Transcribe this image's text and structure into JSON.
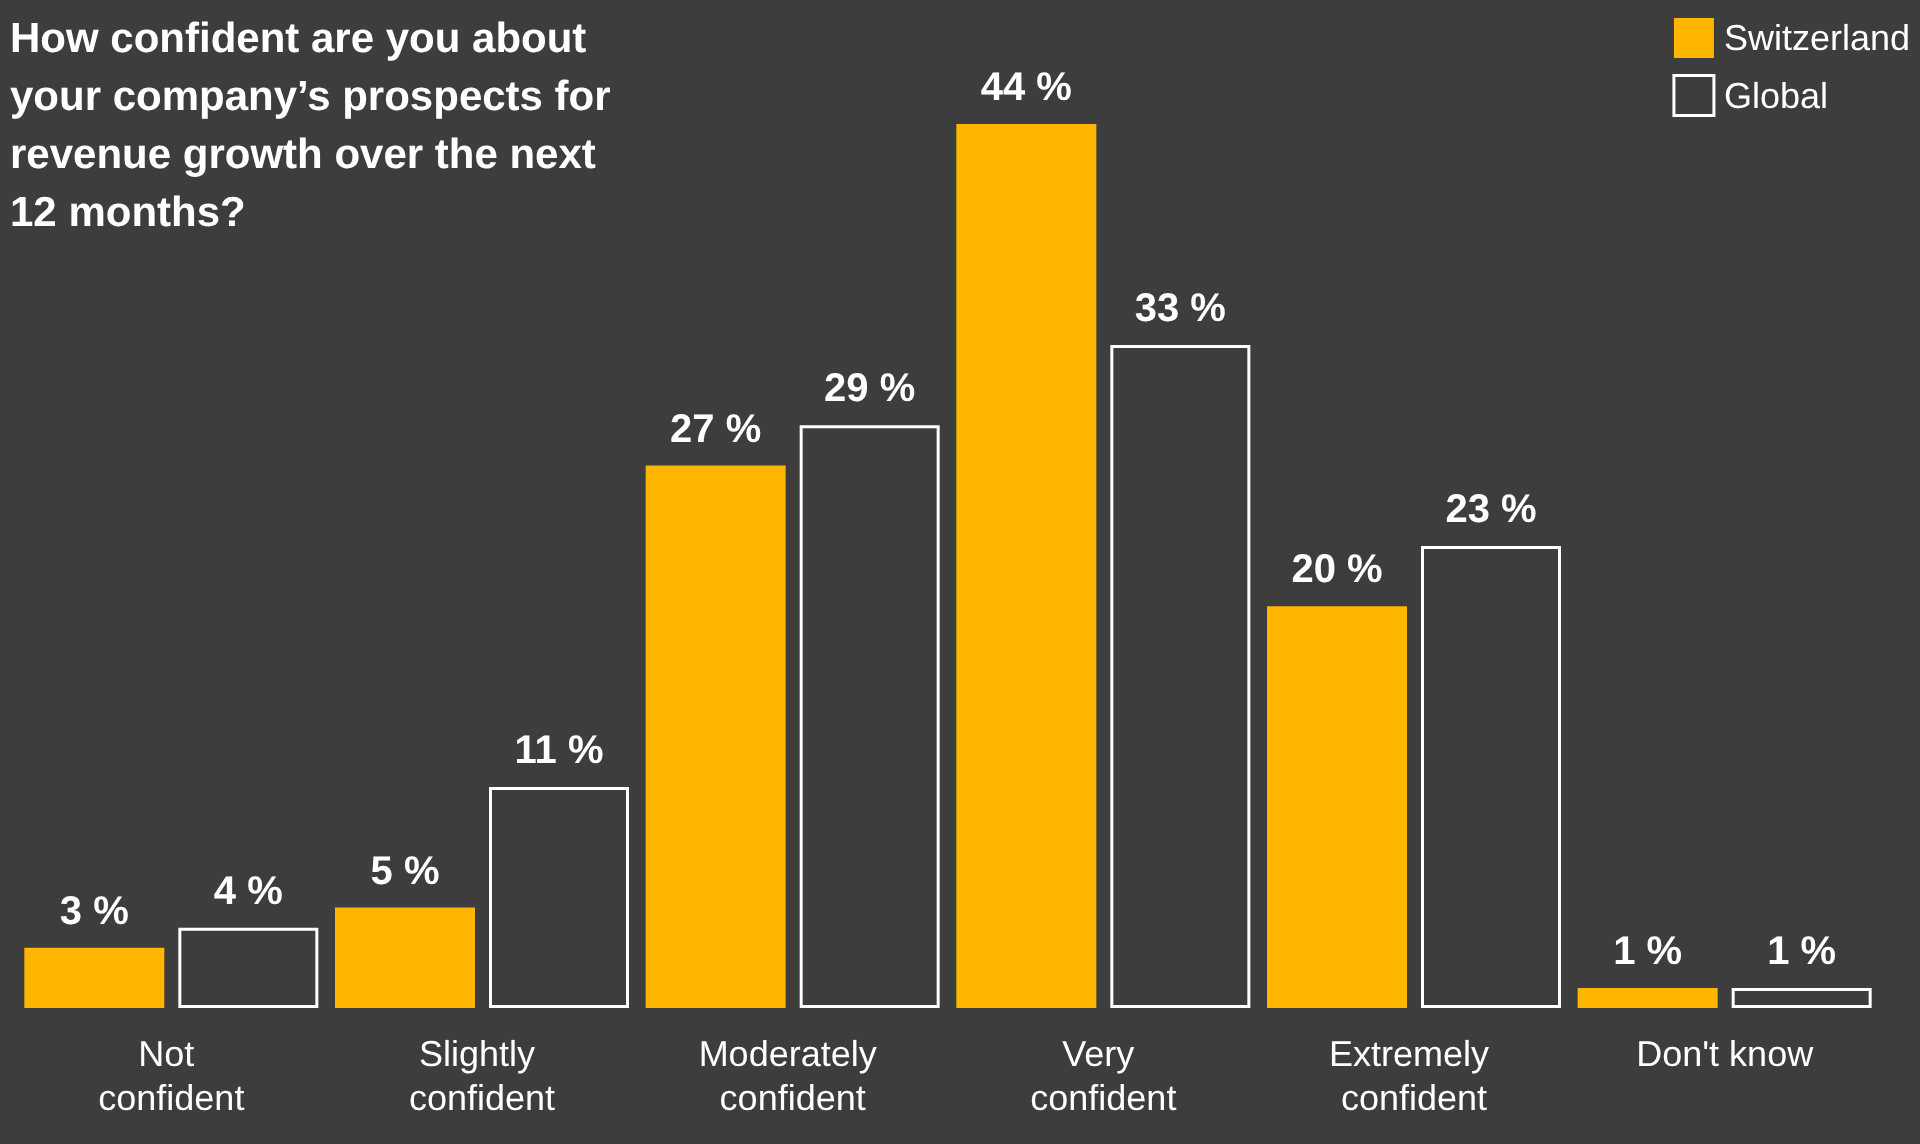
{
  "chart_data": {
    "type": "bar",
    "title": "How confident are you about your company’s prospects for revenue growth over the next 12 months?",
    "categories": [
      "Not confident",
      "Slightly confident",
      "Moderately confident",
      "Very confident",
      "Extremely confident",
      "Don't know"
    ],
    "series": [
      {
        "name": "Switzerland",
        "color": "#ffb600",
        "values": [
          3,
          5,
          27,
          44,
          20,
          1
        ],
        "value_labels": [
          "3 %",
          "5 %",
          "27 %",
          "44 %",
          "20 %",
          "1 %"
        ]
      },
      {
        "name": "Global",
        "color": "#ffffff",
        "values": [
          4,
          11,
          29,
          33,
          23,
          1
        ],
        "value_labels": [
          "4 %",
          "11 %",
          "29 %",
          "33 %",
          "23 %",
          "1 %"
        ]
      }
    ],
    "legend": "top right",
    "tick_labels": "x"
  }
}
